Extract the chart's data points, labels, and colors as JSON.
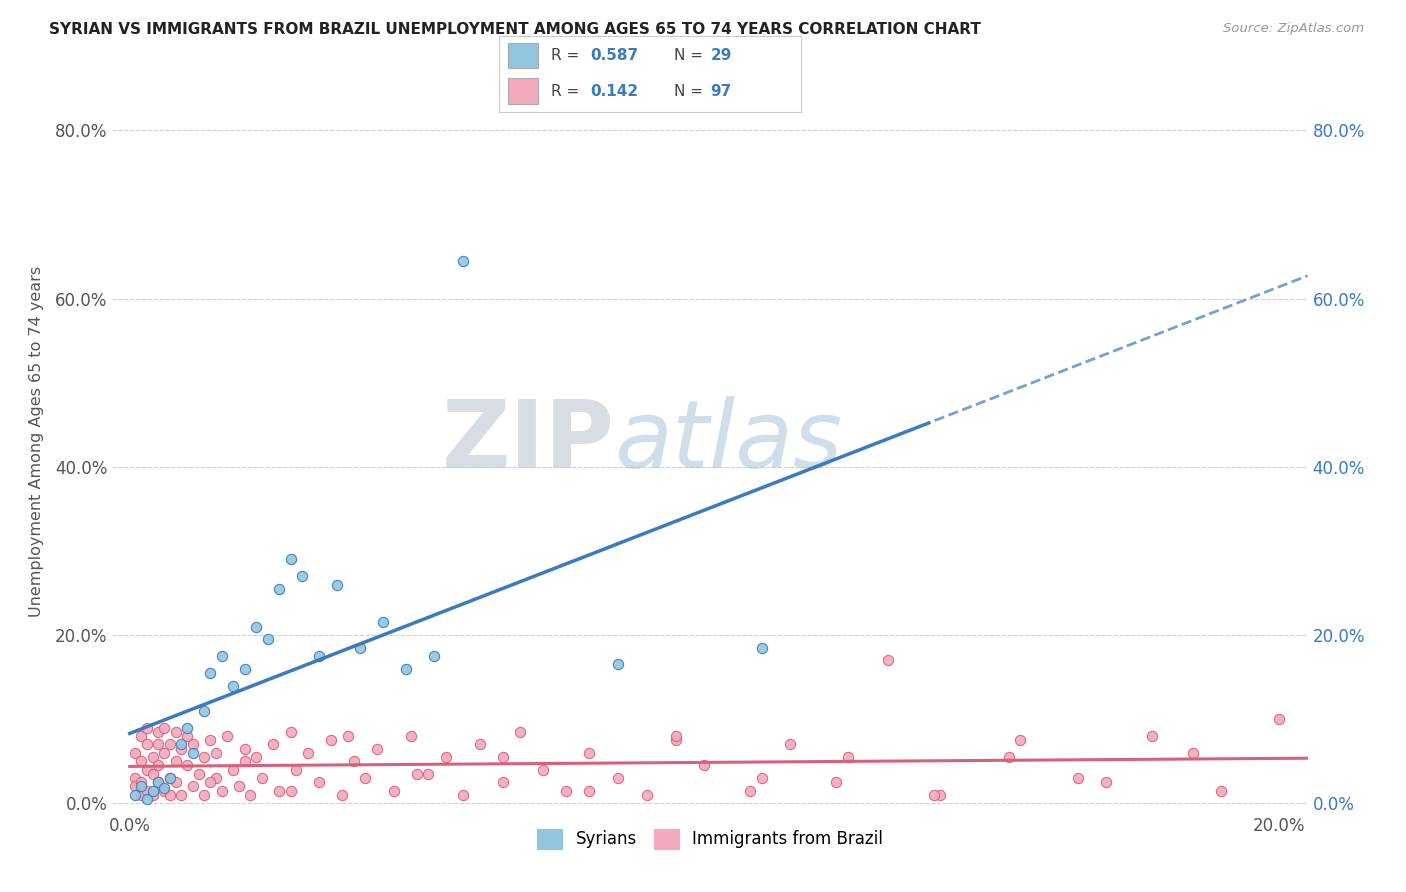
{
  "title": "SYRIAN VS IMMIGRANTS FROM BRAZIL UNEMPLOYMENT AMONG AGES 65 TO 74 YEARS CORRELATION CHART",
  "source": "Source: ZipAtlas.com",
  "ylabel_label": "Unemployment Among Ages 65 to 74 years",
  "legend_labels": [
    "Syrians",
    "Immigrants from Brazil"
  ],
  "syrians_R": "0.587",
  "syrians_N": "29",
  "brazil_R": "0.142",
  "brazil_N": "97",
  "color_syrians": "#92c5de",
  "color_brazil": "#f4a9be",
  "color_syrians_line": "#3a7abf",
  "color_brazil_line": "#d9607a",
  "color_text_blue": "#3a7abf",
  "watermark_color": "#c8d8e8",
  "background": "#ffffff",
  "grid_color": "#d0d0d0",
  "xlim": [
    0.0,
    0.205
  ],
  "ylim": [
    -0.005,
    0.87
  ],
  "xticks": [
    0.0,
    0.2
  ],
  "yticks": [
    0.0,
    0.2,
    0.4,
    0.6,
    0.8
  ],
  "syrians_x": [
    0.001,
    0.002,
    0.003,
    0.004,
    0.005,
    0.006,
    0.007,
    0.009,
    0.01,
    0.011,
    0.013,
    0.014,
    0.016,
    0.018,
    0.02,
    0.022,
    0.024,
    0.026,
    0.028,
    0.03,
    0.033,
    0.036,
    0.04,
    0.044,
    0.048,
    0.053,
    0.058,
    0.085,
    0.11
  ],
  "syrians_y": [
    0.01,
    0.02,
    0.005,
    0.015,
    0.025,
    0.018,
    0.03,
    0.07,
    0.09,
    0.06,
    0.11,
    0.155,
    0.175,
    0.14,
    0.16,
    0.21,
    0.195,
    0.255,
    0.29,
    0.27,
    0.175,
    0.26,
    0.185,
    0.215,
    0.16,
    0.175,
    0.645,
    0.165,
    0.185
  ],
  "brazil_x": [
    0.001,
    0.001,
    0.001,
    0.002,
    0.002,
    0.002,
    0.002,
    0.003,
    0.003,
    0.003,
    0.003,
    0.004,
    0.004,
    0.004,
    0.005,
    0.005,
    0.005,
    0.005,
    0.006,
    0.006,
    0.006,
    0.007,
    0.007,
    0.007,
    0.008,
    0.008,
    0.008,
    0.009,
    0.009,
    0.01,
    0.01,
    0.011,
    0.011,
    0.012,
    0.013,
    0.013,
    0.014,
    0.015,
    0.015,
    0.016,
    0.017,
    0.018,
    0.019,
    0.02,
    0.021,
    0.022,
    0.023,
    0.025,
    0.026,
    0.028,
    0.029,
    0.031,
    0.033,
    0.035,
    0.037,
    0.039,
    0.041,
    0.043,
    0.046,
    0.049,
    0.052,
    0.055,
    0.058,
    0.061,
    0.065,
    0.068,
    0.072,
    0.076,
    0.08,
    0.085,
    0.09,
    0.095,
    0.1,
    0.108,
    0.115,
    0.123,
    0.132,
    0.141,
    0.153,
    0.165,
    0.178,
    0.19,
    0.2,
    0.185,
    0.17,
    0.155,
    0.14,
    0.125,
    0.11,
    0.095,
    0.08,
    0.065,
    0.05,
    0.038,
    0.028,
    0.02,
    0.014
  ],
  "brazil_y": [
    0.03,
    0.06,
    0.02,
    0.05,
    0.01,
    0.08,
    0.025,
    0.04,
    0.07,
    0.015,
    0.09,
    0.035,
    0.055,
    0.01,
    0.07,
    0.025,
    0.085,
    0.045,
    0.015,
    0.06,
    0.09,
    0.03,
    0.07,
    0.01,
    0.05,
    0.085,
    0.025,
    0.065,
    0.01,
    0.045,
    0.08,
    0.02,
    0.07,
    0.035,
    0.055,
    0.01,
    0.075,
    0.03,
    0.06,
    0.015,
    0.08,
    0.04,
    0.02,
    0.065,
    0.01,
    0.055,
    0.03,
    0.07,
    0.015,
    0.085,
    0.04,
    0.06,
    0.025,
    0.075,
    0.01,
    0.05,
    0.03,
    0.065,
    0.015,
    0.08,
    0.035,
    0.055,
    0.01,
    0.07,
    0.025,
    0.085,
    0.04,
    0.015,
    0.06,
    0.03,
    0.01,
    0.075,
    0.045,
    0.015,
    0.07,
    0.025,
    0.17,
    0.01,
    0.055,
    0.03,
    0.08,
    0.015,
    0.1,
    0.06,
    0.025,
    0.075,
    0.01,
    0.055,
    0.03,
    0.08,
    0.015,
    0.055,
    0.035,
    0.08,
    0.015,
    0.05,
    0.025
  ]
}
